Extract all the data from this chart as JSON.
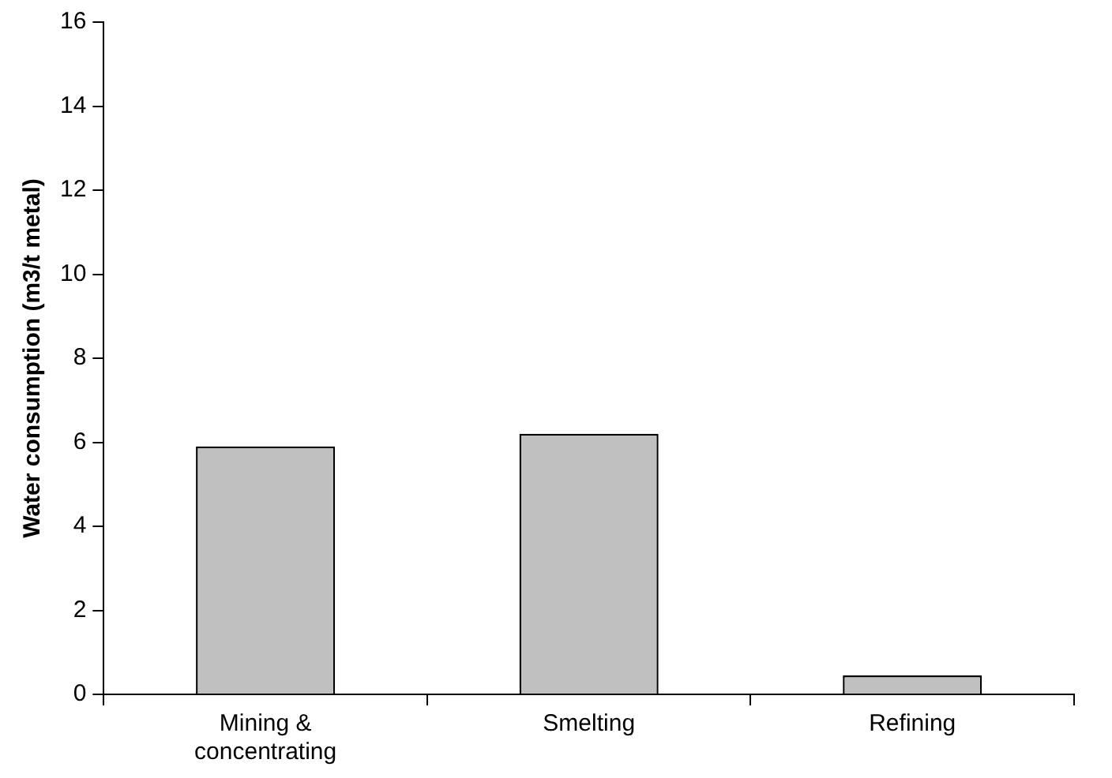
{
  "chart_data": {
    "type": "bar",
    "ylabel": "Water consumption (m3/t metal)",
    "categories": [
      "Mining & concentrating",
      "Smelting",
      "Refining"
    ],
    "values": [
      5.9,
      6.2,
      0.45
    ],
    "color": "#c0c0c0",
    "ylim": [
      0,
      16
    ],
    "yticks": [
      0,
      2,
      4,
      6,
      8,
      10,
      12,
      14,
      16
    ],
    "grid": false,
    "legend": false
  }
}
